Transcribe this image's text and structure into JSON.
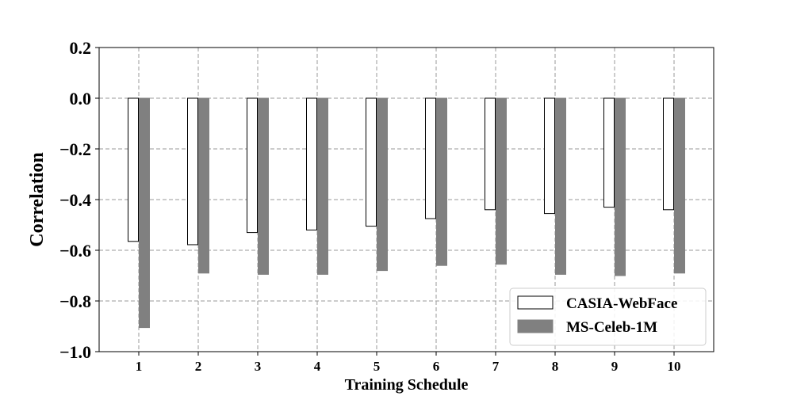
{
  "chart_data": {
    "type": "bar",
    "categories": [
      "1",
      "2",
      "3",
      "4",
      "5",
      "6",
      "7",
      "8",
      "9",
      "10"
    ],
    "series": [
      {
        "name": "CASIA-WebFace",
        "values": [
          -0.565,
          -0.578,
          -0.53,
          -0.52,
          -0.505,
          -0.475,
          -0.44,
          -0.455,
          -0.43,
          -0.44
        ],
        "color": "#ffffff",
        "edge_color": "#000000"
      },
      {
        "name": "MS-Celeb-1M",
        "values": [
          -0.905,
          -0.69,
          -0.695,
          -0.695,
          -0.68,
          -0.66,
          -0.655,
          -0.695,
          -0.7,
          -0.69
        ],
        "color": "#808080",
        "edge_color": "#808080"
      }
    ],
    "xlabel": "Training Schedule",
    "ylabel": "Correlation",
    "ylim": [
      -1.0,
      0.2
    ],
    "yticks": [
      0.2,
      0.0,
      -0.2,
      -0.4,
      -0.6,
      -0.8,
      -1.0
    ],
    "ytick_labels": [
      "0.2",
      "0.0",
      "−0.2",
      "−0.4",
      "−0.6",
      "−0.8",
      "−1.0"
    ],
    "grid": true,
    "grid_color": "#999999",
    "legend_position": "lower-right"
  }
}
